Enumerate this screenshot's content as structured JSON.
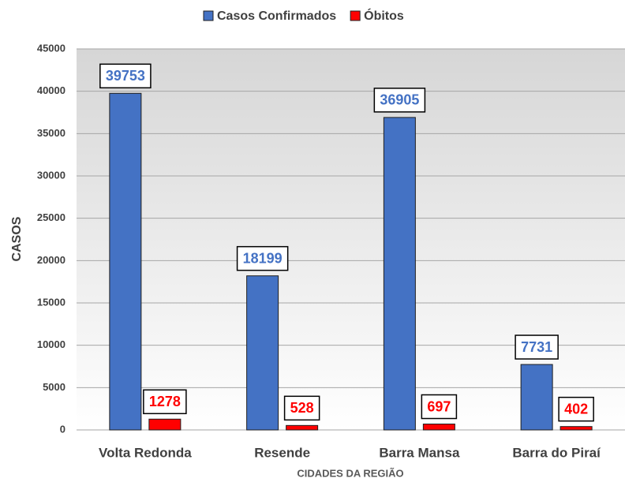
{
  "chart_data": {
    "type": "bar",
    "categories": [
      "Volta Redonda",
      "Resende",
      "Barra Mansa",
      "Barra do Piraí"
    ],
    "series": [
      {
        "name": "Casos Confirmados",
        "color": "#4472c4",
        "label_color": "#4472c4",
        "values": [
          39753,
          18199,
          36905,
          7731
        ]
      },
      {
        "name": "Óbitos",
        "color": "#ff0000",
        "label_color": "#ff0000",
        "values": [
          1278,
          528,
          697,
          402
        ]
      }
    ],
    "ylim": [
      0,
      45000
    ],
    "yticks": [
      0,
      5000,
      10000,
      15000,
      20000,
      25000,
      30000,
      35000,
      40000,
      45000
    ],
    "ylabel": "CASOS",
    "xlabel": "CIDADES DA REGIÃO",
    "grid": true,
    "legend": "top"
  }
}
